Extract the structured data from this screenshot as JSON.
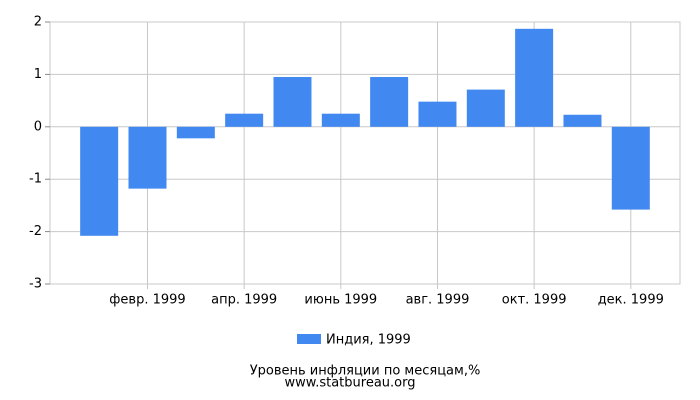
{
  "chart_data": {
    "type": "bar",
    "title": "Уровень инфляции по месяцам,%",
    "subtitle": "www.statbureau.org",
    "categories": [
      null,
      "февр. 1999",
      null,
      "апр. 1999",
      null,
      "июнь 1999",
      null,
      "авг. 1999",
      null,
      "окт. 1999",
      null,
      "дек. 1999"
    ],
    "series": [
      {
        "name": "Индия, 1999",
        "color": "#4189f0",
        "values": [
          -2.08,
          -1.18,
          -0.22,
          0.25,
          0.95,
          0.25,
          0.95,
          0.48,
          0.71,
          1.87,
          0.23,
          -1.58
        ]
      }
    ],
    "ylim": [
      -3,
      2
    ],
    "yticks": [
      -3,
      -2,
      -1,
      0,
      1,
      2
    ],
    "grid": true
  }
}
